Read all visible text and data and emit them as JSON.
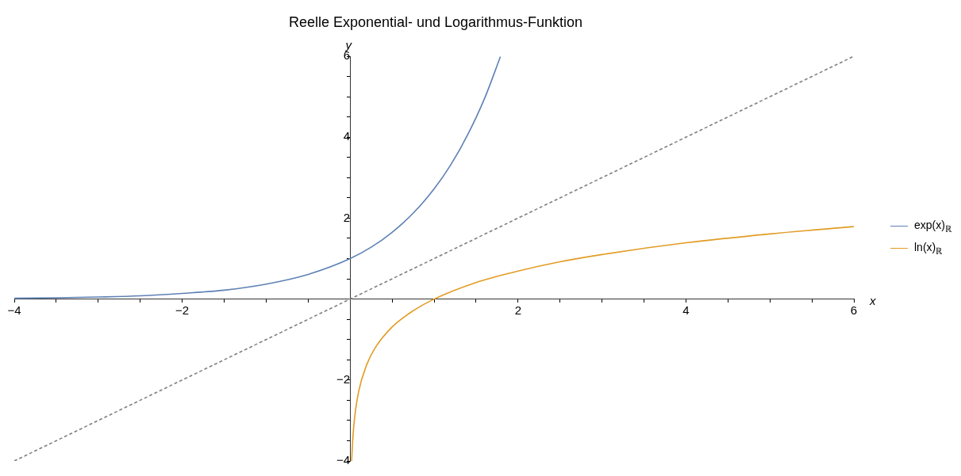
{
  "chart_data": {
    "type": "line",
    "title": "Reelle Exponential- und Logarithmus-Funktion",
    "xlabel": "x",
    "ylabel": "y",
    "xlim": [
      -4,
      6
    ],
    "ylim": [
      -4,
      6
    ],
    "xticks": [
      {
        "value": -4,
        "label": "−4"
      },
      {
        "value": -3.5,
        "label": null
      },
      {
        "value": -3,
        "label": null
      },
      {
        "value": -2.5,
        "label": null
      },
      {
        "value": -2,
        "label": "−2"
      },
      {
        "value": -1.5,
        "label": null
      },
      {
        "value": -1,
        "label": null
      },
      {
        "value": -0.5,
        "label": null
      },
      {
        "value": 0.5,
        "label": null
      },
      {
        "value": 1,
        "label": null
      },
      {
        "value": 1.5,
        "label": null
      },
      {
        "value": 2,
        "label": "2"
      },
      {
        "value": 2.5,
        "label": null
      },
      {
        "value": 3,
        "label": null
      },
      {
        "value": 3.5,
        "label": null
      },
      {
        "value": 4,
        "label": "4"
      },
      {
        "value": 4.5,
        "label": null
      },
      {
        "value": 5,
        "label": null
      },
      {
        "value": 5.5,
        "label": null
      },
      {
        "value": 6,
        "label": "6"
      }
    ],
    "yticks": [
      {
        "value": -4,
        "label": "−4"
      },
      {
        "value": -3.5,
        "label": null
      },
      {
        "value": -3,
        "label": null
      },
      {
        "value": -2.5,
        "label": null
      },
      {
        "value": -2,
        "label": "−2"
      },
      {
        "value": -1.5,
        "label": null
      },
      {
        "value": -1,
        "label": null
      },
      {
        "value": -0.5,
        "label": null
      },
      {
        "value": 0.5,
        "label": null
      },
      {
        "value": 1,
        "label": null
      },
      {
        "value": 1.5,
        "label": null
      },
      {
        "value": 2,
        "label": "2"
      },
      {
        "value": 2.5,
        "label": null
      },
      {
        "value": 3,
        "label": null
      },
      {
        "value": 3.5,
        "label": null
      },
      {
        "value": 4,
        "label": "4"
      },
      {
        "value": 4.5,
        "label": null
      },
      {
        "value": 5,
        "label": null
      },
      {
        "value": 5.5,
        "label": null
      },
      {
        "value": 6,
        "label": "6"
      }
    ],
    "legend": "right",
    "marker": "none",
    "series": [
      {
        "name": "exp(x)$_{ℝ}$",
        "color": "#5e81b5",
        "line_style": "solid",
        "x": [
          -4,
          -3.5,
          -3,
          -2.5,
          -2,
          -1.5,
          -1,
          -0.5,
          0,
          0.25,
          0.5,
          0.75,
          1,
          1.2,
          1.4,
          1.6,
          1.79
        ],
        "values": [
          0.02,
          0.03,
          0.05,
          0.08,
          0.14,
          0.22,
          0.37,
          0.61,
          1,
          1.28,
          1.65,
          2.12,
          2.72,
          3.32,
          4.06,
          4.95,
          5.99
        ]
      },
      {
        "name": "ln(x)$_{ℝ}$",
        "color": "#e19c24",
        "line_style": "solid",
        "x": [
          0.0183,
          0.03,
          0.05,
          0.1,
          0.2,
          0.3,
          0.5,
          0.75,
          1,
          1.5,
          2,
          2.5,
          3,
          4,
          5,
          6
        ],
        "values": [
          -4,
          -3.51,
          -3,
          -2.3,
          -1.61,
          -1.2,
          -0.69,
          -0.29,
          0,
          0.41,
          0.69,
          0.92,
          1.1,
          1.39,
          1.61,
          1.79
        ]
      },
      {
        "color": "#808080",
        "line_style": "dashed",
        "x": [
          -4,
          6
        ],
        "values": [
          -4,
          6
        ]
      }
    ]
  }
}
